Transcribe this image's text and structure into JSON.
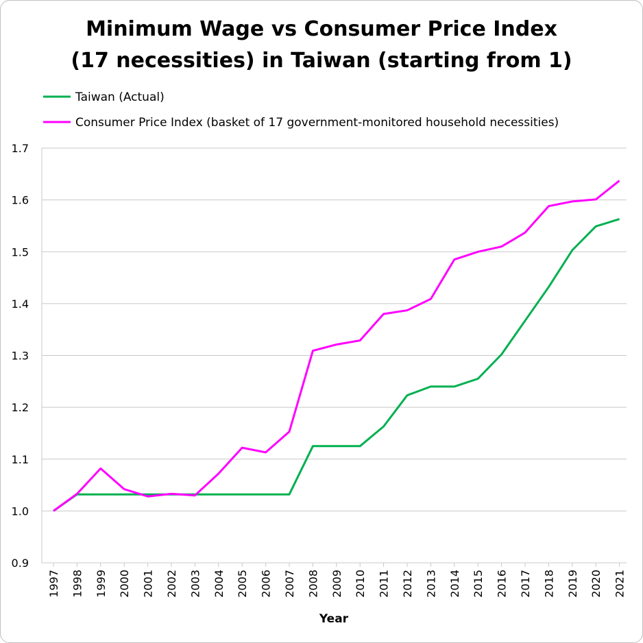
{
  "chart_data": {
    "type": "line",
    "title_line1": "Minimum Wage vs Consumer Price Index",
    "title_line2": "(17 necessities) in Taiwan (starting from 1)",
    "xlabel": "Year",
    "ylabel": "",
    "ylim": [
      0.9,
      1.7
    ],
    "yticks": [
      "1.7",
      "1.6",
      "1.5",
      "1.4",
      "1.3",
      "1.2",
      "1.1",
      "1.0",
      "0.9"
    ],
    "grid": true,
    "legend_position": "top-left",
    "categories": [
      "1997",
      "1998",
      "1999",
      "2000",
      "2001",
      "2002",
      "2003",
      "2004",
      "2005",
      "2006",
      "2007",
      "2008",
      "2009",
      "2010",
      "2011",
      "2012",
      "2013",
      "2014",
      "2015",
      "2016",
      "2017",
      "2018",
      "2019",
      "2020",
      "2021"
    ],
    "series": [
      {
        "name": "Taiwan (Actual)",
        "color": "#00b050",
        "values": [
          1.0,
          1.032,
          1.032,
          1.032,
          1.032,
          1.032,
          1.032,
          1.032,
          1.032,
          1.032,
          1.032,
          1.125,
          1.125,
          1.125,
          1.163,
          1.223,
          1.24,
          1.24,
          1.255,
          1.302,
          1.367,
          1.432,
          1.503,
          1.549,
          1.563
        ]
      },
      {
        "name": "Consumer Price Index (basket of 17 government-monitored household necessities)",
        "color": "#ff00ff",
        "values": [
          1.0,
          1.033,
          1.082,
          1.042,
          1.028,
          1.033,
          1.03,
          1.072,
          1.122,
          1.113,
          1.153,
          1.309,
          1.321,
          1.329,
          1.38,
          1.387,
          1.409,
          1.485,
          1.5,
          1.51,
          1.537,
          1.588,
          1.597,
          1.601,
          1.637
        ]
      }
    ]
  }
}
